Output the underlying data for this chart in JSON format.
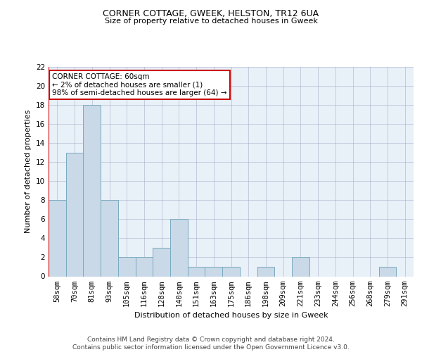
{
  "title": "CORNER COTTAGE, GWEEK, HELSTON, TR12 6UA",
  "subtitle": "Size of property relative to detached houses in Gweek",
  "xlabel": "Distribution of detached houses by size in Gweek",
  "ylabel": "Number of detached properties",
  "categories": [
    "58sqm",
    "70sqm",
    "81sqm",
    "93sqm",
    "105sqm",
    "116sqm",
    "128sqm",
    "140sqm",
    "151sqm",
    "163sqm",
    "175sqm",
    "186sqm",
    "198sqm",
    "209sqm",
    "221sqm",
    "233sqm",
    "244sqm",
    "256sqm",
    "268sqm",
    "279sqm",
    "291sqm"
  ],
  "values": [
    8,
    13,
    18,
    8,
    2,
    2,
    3,
    6,
    1,
    1,
    1,
    0,
    1,
    0,
    2,
    0,
    0,
    0,
    0,
    1,
    0
  ],
  "bar_color": "#c9d9e8",
  "bar_edge_color": "#7aaabf",
  "subject_line_color": "#cc0000",
  "ylim": [
    0,
    22
  ],
  "yticks": [
    0,
    2,
    4,
    6,
    8,
    10,
    12,
    14,
    16,
    18,
    20,
    22
  ],
  "annotation_text": "CORNER COTTAGE: 60sqm\n← 2% of detached houses are smaller (1)\n98% of semi-detached houses are larger (64) →",
  "annotation_box_color": "#ffffff",
  "annotation_box_edge_color": "#cc0000",
  "background_color": "#e8f0f8",
  "footer": "Contains HM Land Registry data © Crown copyright and database right 2024.\nContains public sector information licensed under the Open Government Licence v3.0.",
  "title_fontsize": 9,
  "subtitle_fontsize": 8,
  "ylabel_fontsize": 8,
  "xlabel_fontsize": 8,
  "tick_fontsize": 7.5,
  "footer_fontsize": 6.5,
  "annotation_fontsize": 7.5
}
